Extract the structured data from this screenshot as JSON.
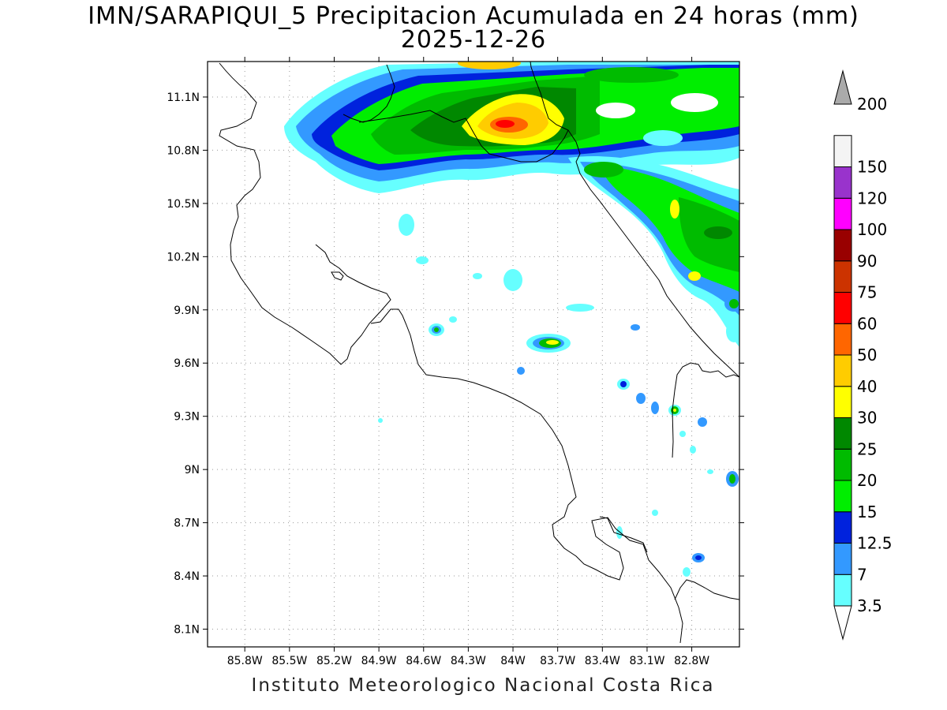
{
  "title": {
    "line1": "IMN/SARAPIQUI_5 Precipitacion Acumulada en 24 horas (mm)",
    "line2": "2025-12-26"
  },
  "footer": "Instituto Meteorologico Nacional Costa Rica",
  "map": {
    "lon_range": [
      -86.05,
      -82.48
    ],
    "lat_range": [
      8.0,
      11.3
    ],
    "lat_ticks": [
      "11.1N",
      "10.8N",
      "10.5N",
      "10.2N",
      "9.9N",
      "9.6N",
      "9.3N",
      "9N",
      "8.7N",
      "8.4N",
      "8.1N"
    ],
    "lat_values": [
      11.1,
      10.8,
      10.5,
      10.2,
      9.9,
      9.6,
      9.3,
      9.0,
      8.7,
      8.4,
      8.1
    ],
    "lon_ticks": [
      "85.8W",
      "85.5W",
      "85.2W",
      "84.9W",
      "84.6W",
      "84.3W",
      "84W",
      "83.7W",
      "83.4W",
      "83.1W",
      "82.8W"
    ],
    "lon_values": [
      -85.8,
      -85.5,
      -85.2,
      -84.9,
      -84.6,
      -84.3,
      -84.0,
      -83.7,
      -83.4,
      -83.1,
      -82.8
    ],
    "grid": true
  },
  "colorbar": {
    "levels": [
      "3.5",
      "7",
      "12.5",
      "15",
      "20",
      "25",
      "30",
      "40",
      "50",
      "60",
      "75",
      "90",
      "100",
      "120",
      "150",
      "200"
    ],
    "colors": [
      "#66ffff",
      "#3399ff",
      "#0022dd",
      "#00ee00",
      "#00bb00",
      "#008800",
      "#ffff00",
      "#ffcc00",
      "#ff6600",
      "#ff0000",
      "#cc3300",
      "#990000",
      "#ff00ff",
      "#9933cc",
      "#f4f4f4",
      "#aaaaaa"
    ]
  }
}
